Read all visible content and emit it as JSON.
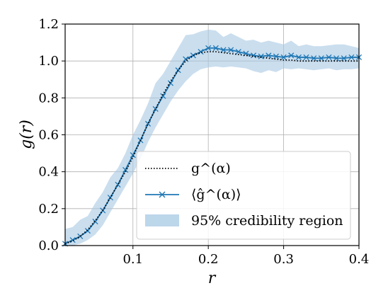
{
  "chart_data": {
    "type": "line",
    "xlabel": "r",
    "ylabel": "g(r)",
    "xlim": [
      0.01,
      0.4
    ],
    "ylim": [
      0.0,
      1.2
    ],
    "x_ticks": [
      0.1,
      0.2,
      0.3,
      0.4
    ],
    "x_tick_labels": [
      "0.1",
      "0.2",
      "0.3",
      "0.4"
    ],
    "y_ticks": [
      0.0,
      0.2,
      0.4,
      0.6,
      0.8,
      1.0,
      1.2
    ],
    "y_tick_labels": [
      "0.0",
      "0.2",
      "0.4",
      "0.6",
      "0.8",
      "1.0",
      "1.2"
    ],
    "grid": true,
    "legend_position": "lower-right",
    "colors": {
      "estimate": "#1f77b4",
      "band": "#a6c8e3",
      "true": "#000000"
    },
    "x": [
      0.01,
      0.02,
      0.03,
      0.04,
      0.05,
      0.06,
      0.07,
      0.08,
      0.09,
      0.1,
      0.11,
      0.12,
      0.13,
      0.14,
      0.15,
      0.16,
      0.17,
      0.18,
      0.19,
      0.2,
      0.21,
      0.22,
      0.23,
      0.24,
      0.25,
      0.26,
      0.27,
      0.28,
      0.29,
      0.3,
      0.31,
      0.32,
      0.33,
      0.34,
      0.35,
      0.36,
      0.37,
      0.38,
      0.39,
      0.4
    ],
    "series": [
      {
        "name": "g^(α)",
        "style": "dotted",
        "values": [
          0.01,
          0.025,
          0.05,
          0.085,
          0.135,
          0.19,
          0.26,
          0.33,
          0.4,
          0.48,
          0.57,
          0.66,
          0.74,
          0.82,
          0.89,
          0.95,
          1.0,
          1.03,
          1.045,
          1.05,
          1.05,
          1.045,
          1.04,
          1.035,
          1.03,
          1.025,
          1.02,
          1.015,
          1.01,
          1.005,
          1.005,
          1.0,
          1.0,
          1.0,
          1.0,
          1.0,
          1.0,
          1.0,
          1.0,
          1.0
        ]
      },
      {
        "name": "⟨ĝ^(α)⟩",
        "style": "solid-x",
        "values": [
          0.01,
          0.03,
          0.05,
          0.08,
          0.13,
          0.19,
          0.26,
          0.33,
          0.41,
          0.49,
          0.57,
          0.66,
          0.74,
          0.81,
          0.88,
          0.95,
          1.01,
          1.03,
          1.05,
          1.07,
          1.07,
          1.06,
          1.06,
          1.05,
          1.04,
          1.03,
          1.025,
          1.03,
          1.025,
          1.02,
          1.03,
          1.02,
          1.02,
          1.015,
          1.015,
          1.02,
          1.015,
          1.015,
          1.02,
          1.02
        ]
      }
    ],
    "band": {
      "name": "95% credibility region",
      "lower": [
        0.0,
        0.0,
        0.01,
        0.03,
        0.06,
        0.11,
        0.18,
        0.25,
        0.32,
        0.39,
        0.47,
        0.56,
        0.64,
        0.71,
        0.78,
        0.84,
        0.89,
        0.93,
        0.955,
        0.965,
        0.97,
        0.965,
        0.97,
        0.965,
        0.96,
        0.945,
        0.935,
        0.95,
        0.94,
        0.96,
        0.955,
        0.96,
        0.955,
        0.95,
        0.955,
        0.96,
        0.95,
        0.955,
        0.955,
        0.96
      ],
      "upper": [
        0.09,
        0.1,
        0.14,
        0.16,
        0.23,
        0.29,
        0.37,
        0.42,
        0.5,
        0.6,
        0.68,
        0.77,
        0.88,
        0.93,
        1.0,
        1.07,
        1.14,
        1.145,
        1.16,
        1.17,
        1.165,
        1.13,
        1.15,
        1.13,
        1.11,
        1.115,
        1.1,
        1.11,
        1.1,
        1.09,
        1.11,
        1.08,
        1.09,
        1.08,
        1.08,
        1.085,
        1.09,
        1.09,
        1.08,
        1.07
      ]
    }
  }
}
